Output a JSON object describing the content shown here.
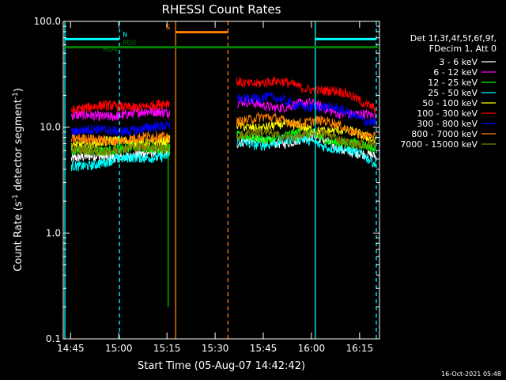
{
  "chart_data": {
    "type": "line",
    "title": "RHESSI Count Rates",
    "ylabel_parts": [
      "Count Rate (s",
      "-1",
      " detector segment",
      "-1",
      ")"
    ],
    "xlabel": "Start Time (05-Aug-07 14:42:42)",
    "y_scale": "log",
    "ylim": [
      0.1,
      100.0
    ],
    "y_ticks": [
      {
        "value": 0.1,
        "label": "0.1"
      },
      {
        "value": 1.0,
        "label": "1.0"
      },
      {
        "value": 10.0,
        "label": "10.0"
      },
      {
        "value": 100.0,
        "label": "100.0"
      }
    ],
    "xlim_minutes": [
      0,
      98.5
    ],
    "x_ticks": [
      {
        "label": "14:45",
        "minute": 2.3
      },
      {
        "label": "15:00",
        "minute": 17.3
      },
      {
        "label": "15:15",
        "minute": 32.3
      },
      {
        "label": "15:30",
        "minute": 47.3
      },
      {
        "label": "15:45",
        "minute": 62.3
      },
      {
        "label": "16:00",
        "minute": 77.3
      },
      {
        "label": "16:15",
        "minute": 92.3
      }
    ],
    "legend_header": [
      "Det 1f,3f,4f,5f,6f,9f,",
      "FDecim 1, Att 0"
    ],
    "series": [
      {
        "name": "3 - 6 keV",
        "color": "#ffffff",
        "seg1": [
          5.0,
          5.8
        ],
        "seg2": [
          7.0,
          7.8,
          5.0
        ]
      },
      {
        "name": "6 - 12 keV",
        "color": "#ff00ff",
        "seg1": [
          12.5,
          14.0
        ],
        "seg2": [
          16.5,
          16.0,
          12.0
        ]
      },
      {
        "name": "12 - 25 keV",
        "color": "#00ff00",
        "seg1": [
          6.0,
          6.5
        ],
        "seg2": [
          7.8,
          8.5,
          6.0
        ]
      },
      {
        "name": "25 - 50 keV",
        "color": "#00ffff",
        "seg1": [
          4.3,
          5.5
        ],
        "seg2": [
          7.0,
          7.5,
          4.6
        ]
      },
      {
        "name": "50 - 100 keV",
        "color": "#ffff00",
        "seg1": [
          7.0,
          7.5
        ],
        "seg2": [
          10.5,
          10.0,
          7.8
        ]
      },
      {
        "name": "100 - 300 keV",
        "color": "#ff0000",
        "seg1": [
          15.0,
          16.5
        ],
        "seg2": [
          28.0,
          24.0,
          16.0
        ]
      },
      {
        "name": "300 - 800 keV",
        "color": "#0000ff",
        "seg1": [
          9.0,
          10.0
        ],
        "seg2": [
          20.0,
          16.0,
          11.5
        ]
      },
      {
        "name": "800 - 7000 keV",
        "color": "#ff8000",
        "seg1": [
          7.5,
          8.0
        ],
        "seg2": [
          12.0,
          11.5,
          8.3
        ]
      },
      {
        "name": "7000 - 15000 keV",
        "color": "#808000",
        "seg1": [
          6.0,
          6.5
        ],
        "seg2": [
          8.5,
          8.5,
          6.8
        ]
      }
    ],
    "segments_minutes": {
      "seg1": [
        2.5,
        33.2
      ],
      "seg2": [
        54.0,
        97.3
      ]
    },
    "vlines": [
      {
        "minute": 0.5,
        "color": "#00ffff",
        "style": "solid"
      },
      {
        "minute": 17.5,
        "color": "#00ffff",
        "style": "dashed"
      },
      {
        "minute": 35.0,
        "color": "#ff8000",
        "style": "solid"
      },
      {
        "minute": 51.3,
        "color": "#ff8000",
        "style": "dashed"
      },
      {
        "minute": 78.5,
        "color": "#00ffff",
        "style": "solid"
      },
      {
        "minute": 97.5,
        "color": "#00ffff",
        "style": "dashed"
      }
    ],
    "flag_bars": [
      {
        "label": "N",
        "color": "#00ffff",
        "y": 68.0,
        "ranges": [
          [
            0.5,
            17.5
          ],
          [
            78.5,
            97.5
          ]
        ],
        "label_minute": 18.5
      },
      {
        "label": "RD0",
        "color": "#008000",
        "y": 57.0,
        "ranges": [
          [
            0.5,
            98.0
          ]
        ],
        "label_minute": 18.5
      },
      {
        "label": "S",
        "color": "#ff8000",
        "y": 79.0,
        "ranges": [
          [
            35.0,
            51.3
          ]
        ],
        "label_minute": 31.8
      }
    ],
    "annotations": [
      {
        "text": "RD4",
        "color": "#008000"
      }
    ],
    "spike": {
      "minute": 32.7,
      "bottom": 0.2,
      "color": "#00ff00"
    }
  },
  "timestamp": "16-Oct-2021 05:48"
}
